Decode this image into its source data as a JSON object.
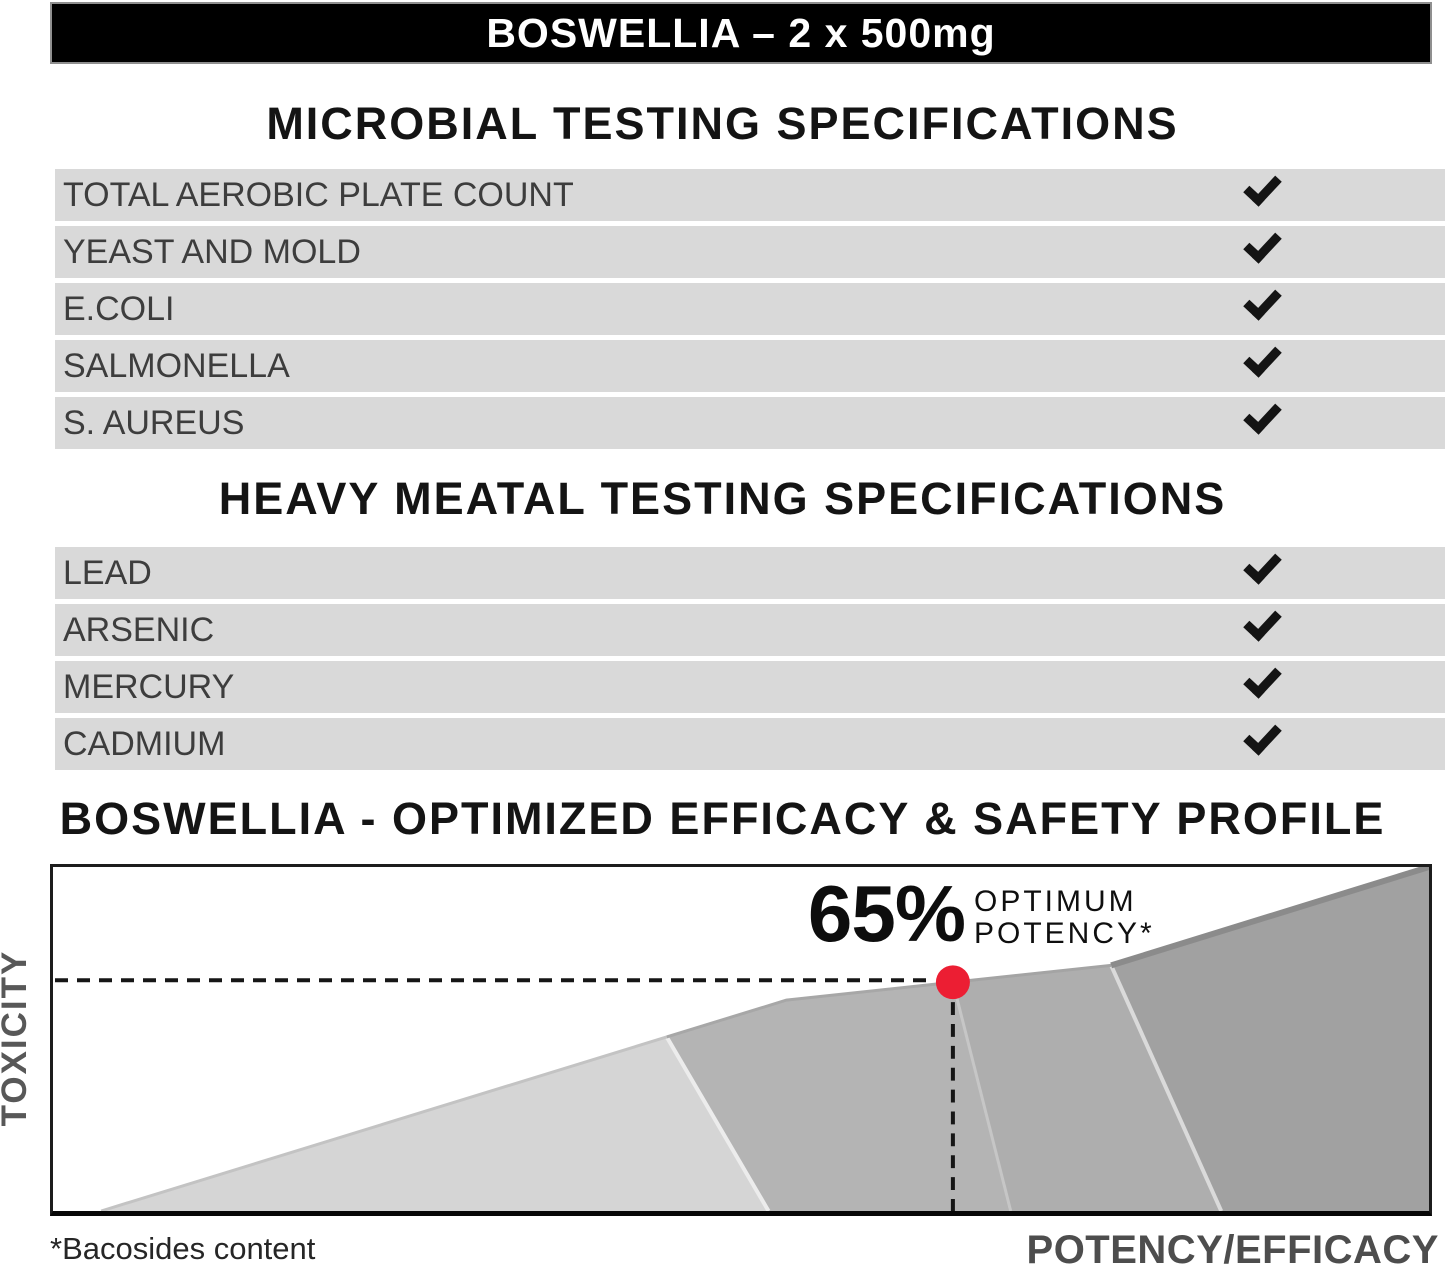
{
  "banner": {
    "title": "BOSWELLIA – 2 x 500mg"
  },
  "profile": {
    "annotation_value": "65%",
    "annotation_line1": "OPTIMUM",
    "annotation_line2": "POTENCY*"
  },
  "chart_data": [
    {
      "type": "table",
      "title": "MICROBIAL TESTING SPECIFICATIONS",
      "rows": [
        {
          "name": "TOTAL AEROBIC PLATE COUNT",
          "check": true
        },
        {
          "name": "YEAST AND MOLD",
          "check": true
        },
        {
          "name": "E.COLI",
          "check": true
        },
        {
          "name": "SALMONELLA",
          "check": true
        },
        {
          "name": "S. AUREUS",
          "check": true
        }
      ]
    },
    {
      "type": "table",
      "title": "HEAVY MEATAL TESTING SPECIFICATIONS",
      "rows": [
        {
          "name": "LEAD",
          "check": true
        },
        {
          "name": "ARSENIC",
          "check": true
        },
        {
          "name": "MERCURY",
          "check": true
        },
        {
          "name": "CADMIUM",
          "check": true
        }
      ]
    },
    {
      "type": "area",
      "title": "BOSWELLIA - OPTIMIZED EFFICACY & SAFETY PROFILE",
      "xlabel": "POTENCY/EFFICACY",
      "ylabel": "TOXICITY",
      "footnote": "*Bacosides content",
      "axis_numbers_shown": false,
      "ridge_points_pct": [
        [
          3.5,
          0
        ],
        [
          44.6,
          50.6
        ],
        [
          53.3,
          61.3
        ],
        [
          65.4,
          66.5
        ],
        [
          76.9,
          71.4
        ],
        [
          100,
          100
        ]
      ],
      "bands": [
        {
          "ridge_idx": [
            0,
            1
          ],
          "bottom_right_x_pct": 52.0,
          "fill": "#d5d5d5",
          "edge": "#c3c3c3",
          "edge_width": 3
        },
        {
          "ridge_idx": [
            1,
            2,
            3
          ],
          "bottom_right_x_pct": 69.6,
          "fill": "#b4b4b4",
          "edge": "#a7a7a7",
          "edge_width": 3
        },
        {
          "ridge_idx": [
            3,
            4
          ],
          "bottom_right_x_pct": 84.9,
          "fill": "#aeaeae",
          "edge": "#a4a4a4",
          "edge_width": 3
        },
        {
          "ridge_idx": [
            4,
            5
          ],
          "bottom_right_x_pct": 100,
          "fill": "#a1a1a1",
          "edge": "#8b8b8b",
          "edge_width": 6
        }
      ],
      "seams": [
        {
          "ridge_idx": 1,
          "bottom_x_pct": 52.0,
          "color": "#ececec",
          "width": 4
        },
        {
          "ridge_idx": 3,
          "bottom_x_pct": 69.6,
          "color": "#c6c6c6",
          "width": 3
        },
        {
          "ridge_idx": 4,
          "bottom_x_pct": 84.9,
          "color": "#dadada",
          "width": 4
        }
      ],
      "marker": {
        "x_pct": 65.4,
        "y_pct": 66.5,
        "label": "65% OPTIMUM POTENCY*",
        "color": "#ec1e33"
      },
      "guide_color": "#161616"
    }
  ]
}
